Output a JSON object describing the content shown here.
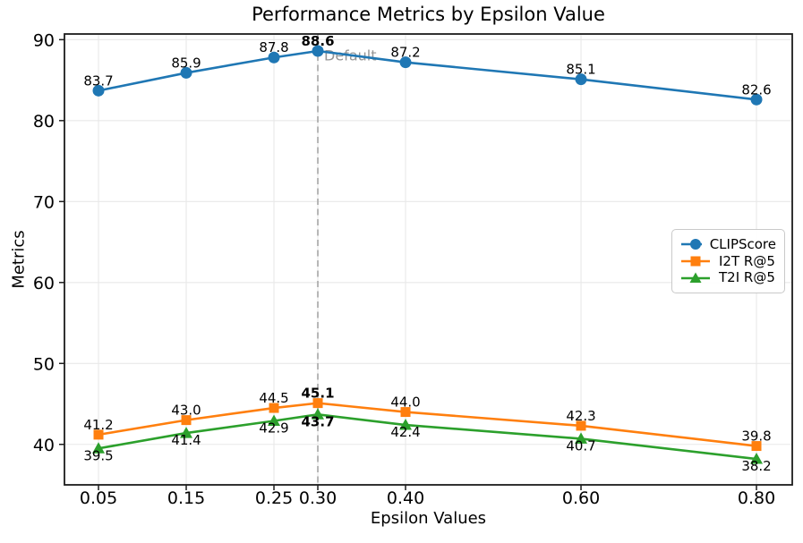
{
  "chart_data": {
    "type": "line",
    "title": "Performance Metrics by Epsilon Value",
    "xlabel": "Epsilon Values",
    "ylabel": "Metrics",
    "x": [
      0.05,
      0.15,
      0.25,
      0.3,
      0.4,
      0.6,
      0.8
    ],
    "x_tick_labels": [
      "0.05",
      "0.15",
      "0.25",
      "0.30",
      "0.40",
      "0.60",
      "0.80"
    ],
    "y_ticks": [
      40,
      50,
      60,
      70,
      80,
      90
    ],
    "xlim": [
      0.0112,
      0.8408
    ],
    "ylim": [
      35.0,
      90.7
    ],
    "grid": true,
    "grid_color": "#e8e8e8",
    "series": [
      {
        "name": "CLIPScore",
        "color": "#1f77b4",
        "marker": "circle",
        "label_placement": "above",
        "values": [
          83.7,
          85.9,
          87.8,
          88.6,
          87.2,
          85.1,
          82.6
        ]
      },
      {
        "name": "I2T R@5",
        "color": "#ff7f0e",
        "marker": "square",
        "label_placement": "above",
        "values": [
          41.2,
          43.0,
          44.5,
          45.1,
          44.0,
          42.3,
          39.8
        ]
      },
      {
        "name": "T2I R@5",
        "color": "#2ca02c",
        "marker": "triangle",
        "label_placement": "below",
        "values": [
          39.5,
          41.4,
          42.9,
          43.7,
          42.4,
          40.7,
          38.2
        ]
      }
    ],
    "highlight": {
      "x": 0.3,
      "label": "Default",
      "label_y": 88.0,
      "line_color": "#ababab",
      "label_color": "#8a8a8a"
    },
    "legend_position": "center-right"
  }
}
